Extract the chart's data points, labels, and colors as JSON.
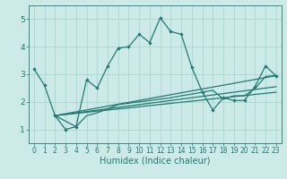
{
  "title": "",
  "xlabel": "Humidex (Indice chaleur)",
  "xlim": [
    -0.5,
    23.5
  ],
  "ylim": [
    0.5,
    5.5
  ],
  "background_color": "#cceae8",
  "grid_color": "#aad4d0",
  "line_color": "#217a72",
  "xticks": [
    0,
    1,
    2,
    3,
    4,
    5,
    6,
    7,
    8,
    9,
    10,
    11,
    12,
    13,
    14,
    15,
    16,
    17,
    18,
    19,
    20,
    21,
    22,
    23
  ],
  "yticks": [
    1,
    2,
    3,
    4,
    5
  ],
  "line1_x": [
    0,
    1,
    2,
    3,
    4,
    5,
    6,
    7,
    8,
    9,
    10,
    11,
    12,
    13,
    14,
    15,
    16,
    17,
    18,
    19,
    20,
    21,
    22,
    23
  ],
  "line1_y": [
    3.2,
    2.6,
    1.5,
    1.0,
    1.1,
    2.8,
    2.5,
    3.3,
    3.95,
    4.0,
    4.45,
    4.15,
    5.05,
    4.55,
    4.45,
    3.25,
    2.35,
    1.7,
    2.15,
    2.05,
    2.05,
    2.55,
    3.3,
    2.95
  ],
  "line2_x": [
    2,
    4,
    5,
    6,
    7,
    8,
    9,
    10,
    11,
    12,
    13,
    14,
    15,
    16,
    17,
    18,
    19,
    20,
    21,
    22,
    23
  ],
  "line2_y": [
    1.5,
    1.1,
    1.5,
    1.6,
    1.75,
    1.9,
    1.95,
    2.0,
    2.05,
    2.1,
    2.15,
    2.22,
    2.28,
    2.35,
    2.42,
    2.1,
    2.22,
    2.22,
    2.48,
    2.92,
    2.95
  ],
  "line3_x": [
    2,
    23
  ],
  "line3_y": [
    1.5,
    2.35
  ],
  "line4_x": [
    2,
    23
  ],
  "line4_y": [
    1.5,
    2.55
  ],
  "line5_x": [
    2,
    23
  ],
  "line5_y": [
    1.5,
    2.95
  ]
}
